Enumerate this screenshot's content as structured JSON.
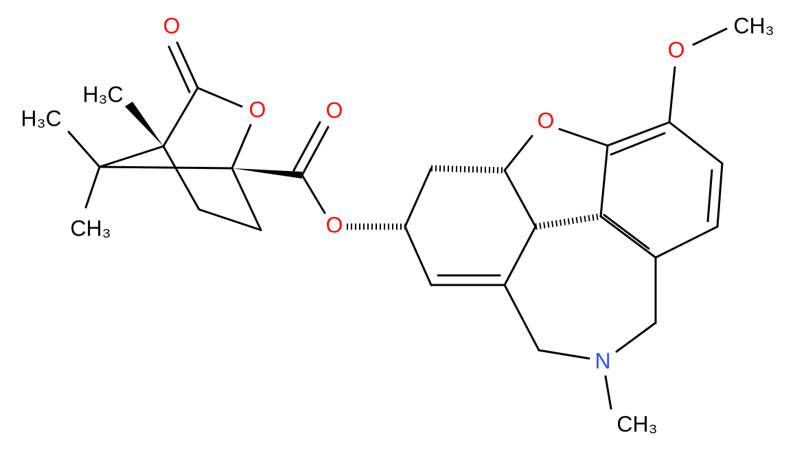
{
  "atoms": [
    {
      "label": "O"
    },
    {
      "label": "H₃C"
    },
    {
      "label": "H₃C"
    },
    {
      "label": "O"
    },
    {
      "label": "O"
    },
    {
      "label": "CH₃"
    },
    {
      "label": "O"
    },
    {
      "label": "O"
    },
    {
      "label": "O"
    },
    {
      "label": "CH₃"
    },
    {
      "label": "N"
    },
    {
      "label": "CH₃"
    }
  ]
}
